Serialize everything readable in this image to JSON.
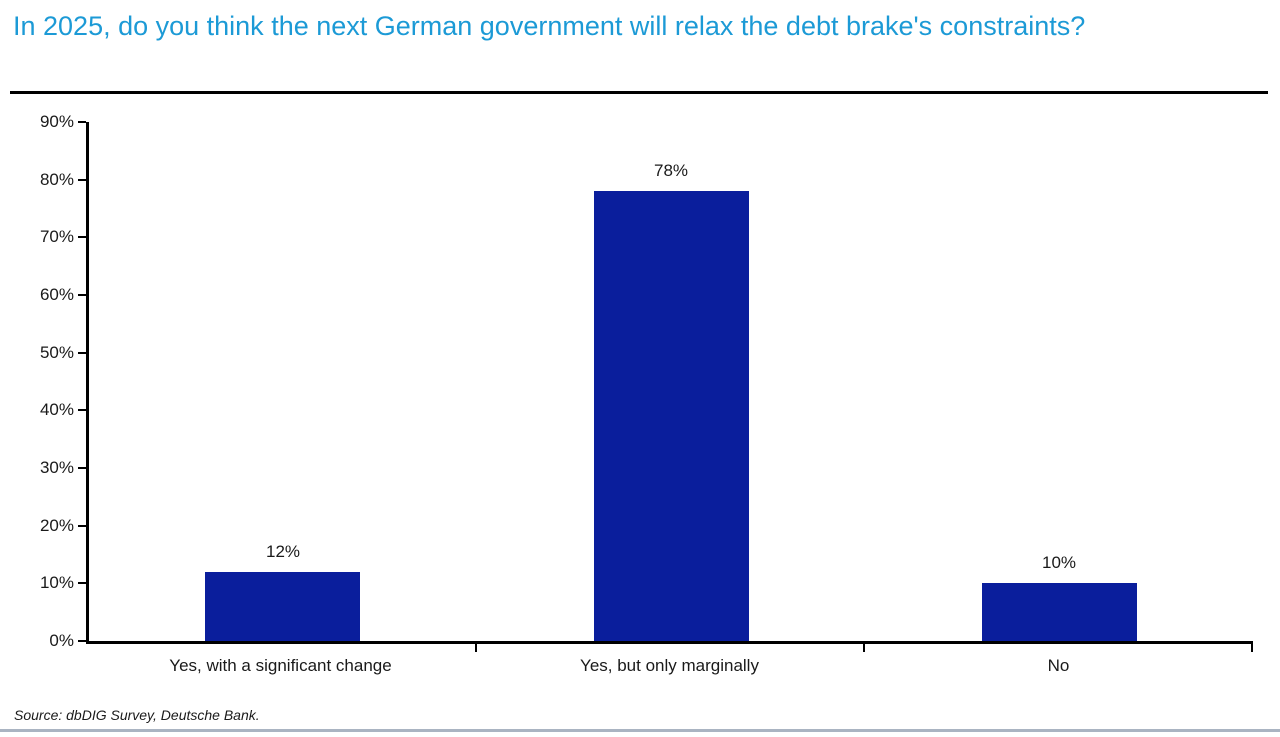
{
  "header": {
    "title": "In 2025, do you think the next German government will relax the debt brake's constraints?"
  },
  "footer": {
    "source": "Source: dbDIG Survey, Deutsche Bank."
  },
  "colors": {
    "title_blue": "#1c9ad6",
    "bar_blue": "#0a1e9c",
    "axis_black": "#000000",
    "bottom_rule": "#aab4c2"
  },
  "chart_data": {
    "type": "bar",
    "title": "In 2025, do you think the next German government will relax the debt brake's constraints?",
    "categories": [
      "Yes, with a significant change",
      "Yes, but only marginally",
      "No"
    ],
    "values": [
      12,
      78,
      10
    ],
    "value_labels": [
      "12%",
      "78%",
      "10%"
    ],
    "xlabel": "",
    "ylabel": "",
    "ylim": [
      0,
      90
    ],
    "y_tick_step": 10,
    "y_tick_labels": [
      "0%",
      "10%",
      "20%",
      "30%",
      "40%",
      "50%",
      "60%",
      "70%",
      "80%",
      "90%"
    ],
    "grid": false,
    "legend": false,
    "bar_color": "#0a1e9c"
  }
}
